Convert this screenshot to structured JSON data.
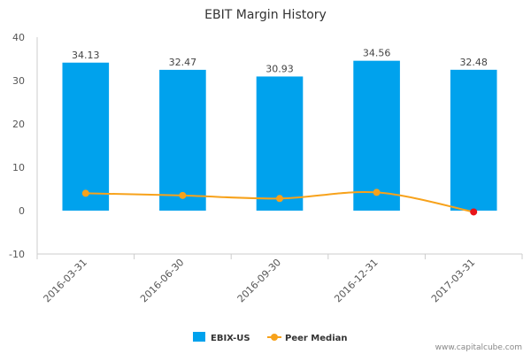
{
  "chart_data": {
    "type": "bar",
    "title": "EBIT Margin History",
    "categories": [
      "2016-03-31",
      "2016-06-30",
      "2016-09-30",
      "2016-12-31",
      "2017-03-31"
    ],
    "ylim": [
      -10,
      40
    ],
    "yticks": [
      40,
      30,
      20,
      10,
      0,
      -10
    ],
    "series": [
      {
        "name": "EBIX-US",
        "kind": "bar",
        "color": "#00a2ed",
        "values": [
          34.13,
          32.47,
          30.93,
          34.56,
          32.48
        ],
        "labels": [
          "34.13",
          "32.47",
          "30.93",
          "34.56",
          "32.48"
        ]
      },
      {
        "name": "Peer Median",
        "kind": "line",
        "color": "#f7a21b",
        "values": [
          4.0,
          3.5,
          2.8,
          4.2,
          -0.3
        ],
        "highlight_last_color": "#e8141a"
      }
    ],
    "legend_position": "bottom",
    "grid": false
  },
  "watermark": "www.capitalcube.com"
}
